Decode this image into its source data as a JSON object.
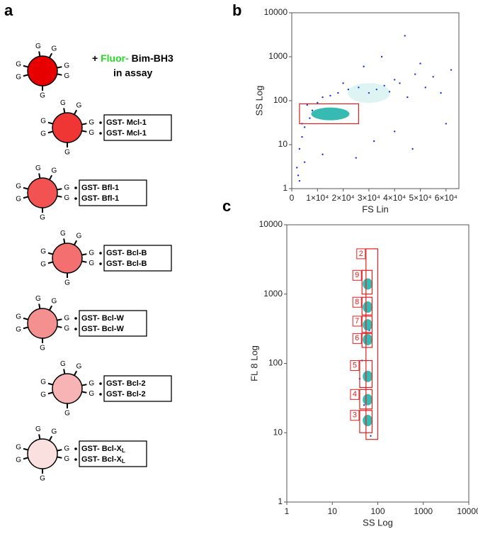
{
  "panel_letters": [
    "a",
    "b",
    "c"
  ],
  "diagram": {
    "bead_letter": "G",
    "assay": {
      "plus": "+",
      "fluor": "Fluor-",
      "peptide": "Bim-BH3",
      "note": "in assay"
    },
    "probe_bead": {
      "color": "#e60000"
    },
    "beads": [
      {
        "color": "#f03535",
        "labels": [
          "GST- Mcl-1",
          "GST- Mcl-1"
        ]
      },
      {
        "color": "#f25252",
        "labels": [
          "GST- Bfl-1",
          "GST- Bfl-1"
        ]
      },
      {
        "color": "#f47070",
        "labels": [
          "GST- Bcl-B",
          "GST- Bcl-B"
        ]
      },
      {
        "color": "#f59090",
        "labels": [
          "GST- Bcl-W",
          "GST- Bcl-W"
        ]
      },
      {
        "color": "#f8b4b4",
        "labels": [
          "GST- Bcl-2",
          "GST- Bcl-2"
        ]
      },
      {
        "color": "#fbe0e0",
        "labels": [
          "GST- Bcl-X",
          "GST- Bcl-X"
        ],
        "sub": "L"
      }
    ]
  },
  "chart_data": [
    {
      "type": "scatter",
      "x_label": "FS Lin",
      "y_label": "SS Log",
      "xscale": "linear",
      "yscale": "log",
      "xlim": [
        0,
        65000
      ],
      "ylim": [
        1,
        10000
      ],
      "xticks": [
        0,
        {
          "value": 10000,
          "label": "1×10⁴"
        },
        {
          "value": 20000,
          "label": "2×10⁴"
        },
        {
          "value": 30000,
          "label": "3×10⁴"
        },
        {
          "value": 40000,
          "label": "4×10⁴"
        },
        {
          "value": 50000,
          "label": "5×10⁴"
        },
        {
          "value": 60000,
          "label": "6×10⁴"
        }
      ],
      "yticks": [
        1,
        10,
        100,
        1000,
        10000
      ],
      "color": "#1f2ee6",
      "cluster_color": "#20b2aa",
      "gate_color": "#e02020",
      "x": [
        2000,
        3000,
        4000,
        5000,
        8000,
        12000,
        18000,
        22000,
        26000,
        30000,
        33000,
        36000,
        38000,
        40000,
        42000,
        45000,
        48000,
        52000,
        55000,
        58000,
        62000,
        3000,
        5000,
        7000,
        10000,
        15000,
        20000,
        28000,
        35000,
        44000,
        50000,
        2500,
        4000,
        6000,
        12000,
        25000,
        32000,
        40000,
        47000,
        60000
      ],
      "y": [
        3,
        8,
        15,
        25,
        60,
        120,
        150,
        180,
        200,
        150,
        180,
        220,
        160,
        300,
        250,
        120,
        400,
        200,
        350,
        150,
        500,
        1.5,
        4,
        40,
        90,
        130,
        250,
        600,
        1000,
        3000,
        700,
        2,
        30,
        80,
        6,
        5,
        12,
        20,
        8,
        30
      ],
      "clusters": {
        "x": [
          15000,
          30000
        ],
        "y": [
          50,
          150
        ]
      },
      "gates": [
        {
          "x": [
            3000,
            26000
          ],
          "y": [
            30,
            85
          ]
        }
      ]
    },
    {
      "type": "scatter",
      "x_label": "SS Log",
      "y_label": "FL 8 Log",
      "xscale": "log",
      "yscale": "log",
      "xlim": [
        1,
        10000
      ],
      "ylim": [
        1,
        10000
      ],
      "xticks": [
        1,
        10,
        100,
        1000,
        10000
      ],
      "yticks": [
        1,
        10,
        100,
        1000,
        10000
      ],
      "color": "#1f2ee6",
      "cluster_color": "#20b2aa",
      "gate_color": "#e02020",
      "x": [
        40,
        45,
        50,
        70,
        65
      ],
      "y": [
        60,
        110,
        25,
        9,
        300
      ],
      "clusters": {
        "x": [
          60,
          60,
          60,
          60,
          60,
          60,
          60
        ],
        "y": [
          15,
          30,
          65,
          220,
          360,
          650,
          1400
        ]
      },
      "gates": [
        {
          "label": "2",
          "x": [
            55,
            100
          ],
          "y": [
            8,
            4500
          ]
        },
        {
          "label": "9",
          "x": [
            45,
            75
          ],
          "y": [
            1000,
            2200
          ]
        },
        {
          "label": "8",
          "x": [
            45,
            75
          ],
          "y": [
            500,
            900
          ]
        },
        {
          "label": "7",
          "x": [
            45,
            75
          ],
          "y": [
            280,
            480
          ]
        },
        {
          "label": "6",
          "x": [
            45,
            75
          ],
          "y": [
            170,
            270
          ]
        },
        {
          "label": "5",
          "x": [
            40,
            75
          ],
          "y": [
            45,
            110
          ]
        },
        {
          "label": "4",
          "x": [
            40,
            75
          ],
          "y": [
            22,
            42
          ]
        },
        {
          "label": "3",
          "x": [
            40,
            75
          ],
          "y": [
            10,
            21
          ]
        }
      ]
    }
  ]
}
